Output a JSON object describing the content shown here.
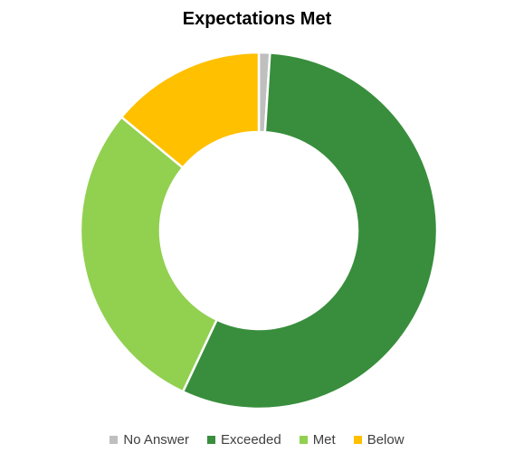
{
  "chart_data": {
    "type": "pie",
    "title": "Expectations Met",
    "categories": [
      "No Answer",
      "Exceeded",
      "Met",
      "Below"
    ],
    "values": [
      1,
      56,
      29,
      14
    ],
    "colors": [
      "#BFBFBF",
      "#388E3C",
      "#92D050",
      "#FFC000"
    ],
    "legend_position": "bottom",
    "donut": true
  }
}
